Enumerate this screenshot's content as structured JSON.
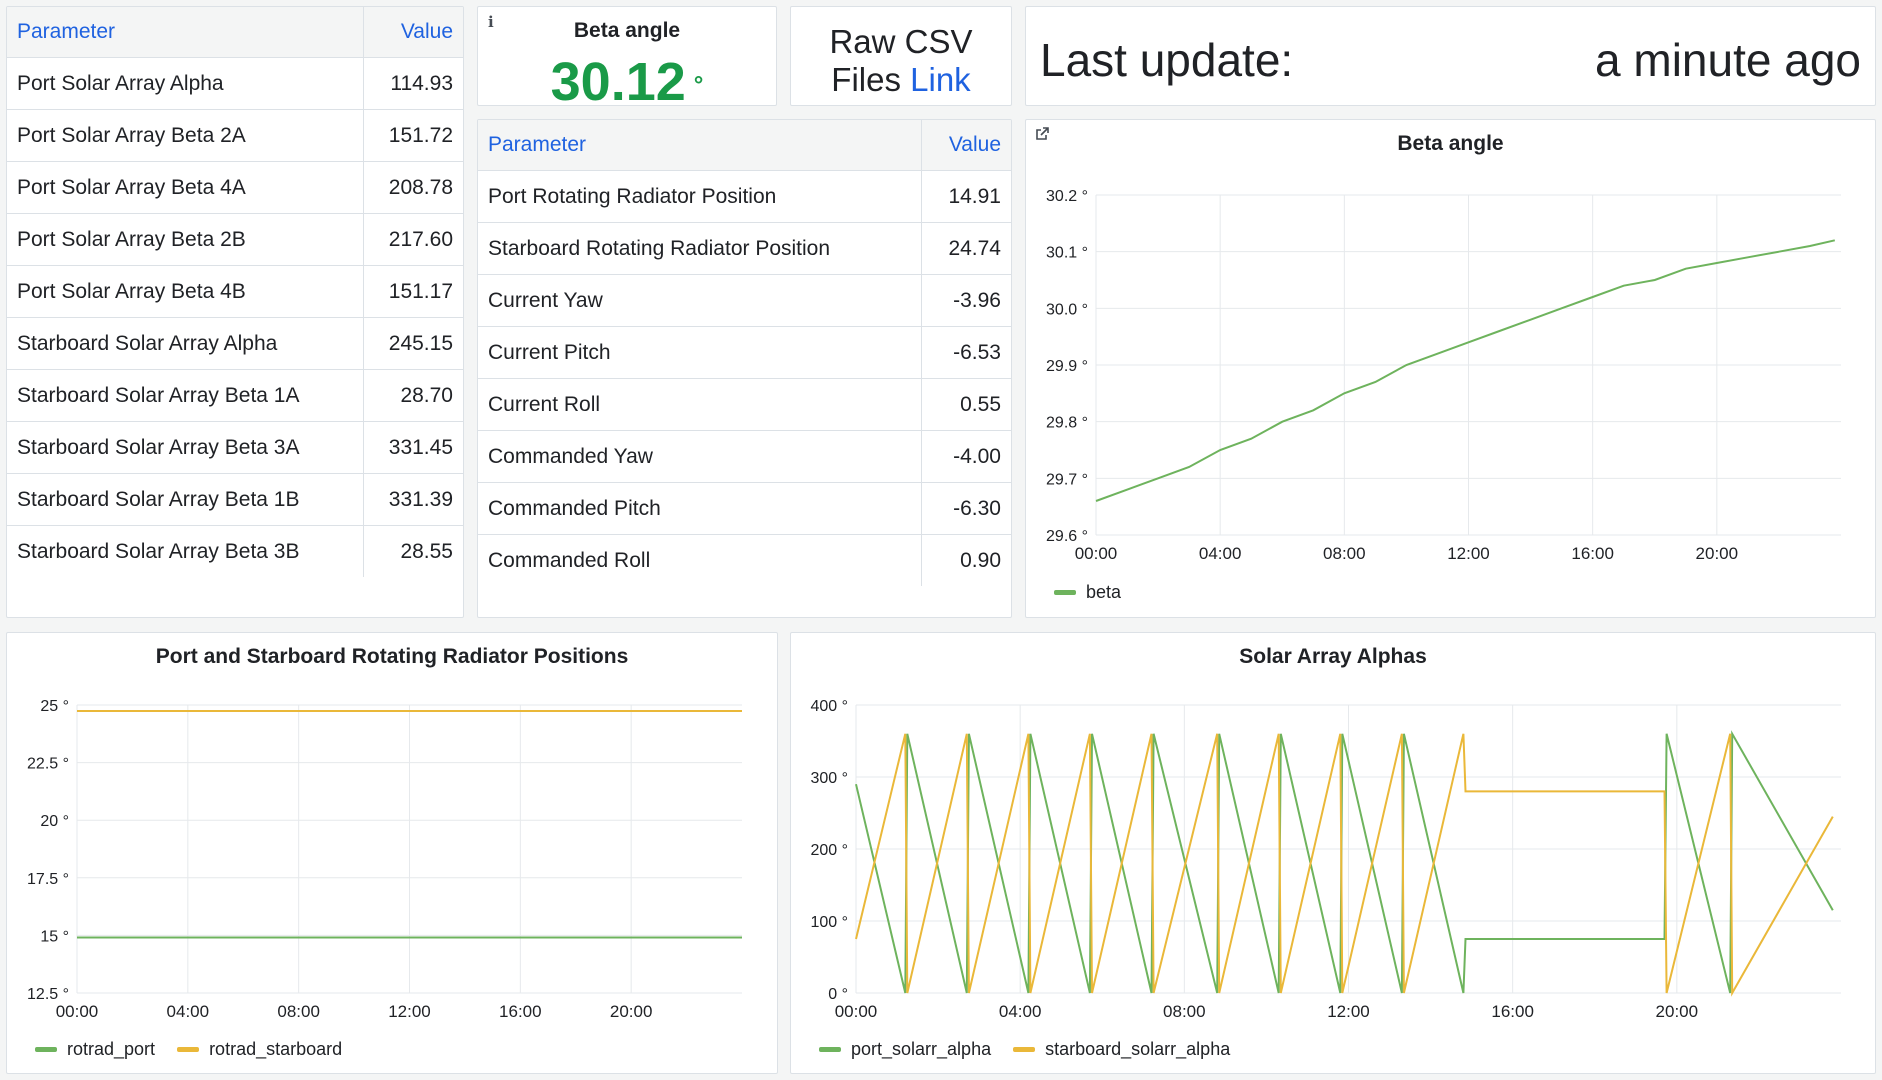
{
  "left_table": {
    "header": {
      "param": "Parameter",
      "value": "Value"
    },
    "rows": [
      {
        "param": "Port Solar Array Alpha",
        "value": "114.93"
      },
      {
        "param": "Port Solar Array Beta 2A",
        "value": "151.72"
      },
      {
        "param": "Port Solar Array Beta 4A",
        "value": "208.78"
      },
      {
        "param": "Port Solar Array Beta 2B",
        "value": "217.60"
      },
      {
        "param": "Port Solar Array Beta 4B",
        "value": "151.17"
      },
      {
        "param": "Starboard Solar Array Alpha",
        "value": "245.15"
      },
      {
        "param": "Starboard Solar Array Beta 1A",
        "value": "28.70"
      },
      {
        "param": "Starboard Solar Array Beta 3A",
        "value": "331.45"
      },
      {
        "param": "Starboard Solar Array Beta 1B",
        "value": "331.39"
      },
      {
        "param": "Starboard Solar Array Beta 3B",
        "value": "28.55"
      }
    ]
  },
  "beta_stat": {
    "title": "Beta angle",
    "value": "30.12",
    "unit": "°",
    "info_icon": "i",
    "color": "#1a9a48"
  },
  "raw_csv": {
    "line1": "Raw CSV",
    "line2_prefix": "Files ",
    "link_text": "Link"
  },
  "last_update": {
    "label": "Last update:",
    "value": "a minute ago"
  },
  "mid_table": {
    "header": {
      "param": "Parameter",
      "value": "Value"
    },
    "rows": [
      {
        "param": "Port Rotating Radiator Position",
        "value": "14.91"
      },
      {
        "param": "Starboard Rotating Radiator Position",
        "value": "24.74"
      },
      {
        "param": "Current Yaw",
        "value": "-3.96"
      },
      {
        "param": "Current Pitch",
        "value": "-6.53"
      },
      {
        "param": "Current Roll",
        "value": "0.55"
      },
      {
        "param": "Commanded Yaw",
        "value": "-4.00"
      },
      {
        "param": "Commanded Pitch",
        "value": "-6.30"
      },
      {
        "param": "Commanded Roll",
        "value": "0.90"
      }
    ]
  },
  "chart_data": [
    {
      "id": "beta",
      "type": "line",
      "title": "Beta angle",
      "link_icon": "external-link-icon",
      "yticks": [
        "30.2 °",
        "30.1 °",
        "30.0 °",
        "29.9 °",
        "29.8 °",
        "29.7 °",
        "29.6 °"
      ],
      "ytick_values": [
        30.2,
        30.1,
        30.0,
        29.9,
        29.8,
        29.7,
        29.6
      ],
      "xticks": [
        "00:00",
        "04:00",
        "08:00",
        "12:00",
        "16:00",
        "20:00"
      ],
      "xtick_hours": [
        0,
        4,
        8,
        12,
        16,
        20
      ],
      "ylim": [
        29.6,
        30.2
      ],
      "xlim_hours": [
        0,
        24
      ],
      "grid": true,
      "legend_position": "bottom-left",
      "series": [
        {
          "name": "beta",
          "color": "#6eb35d",
          "x": [
            0,
            1,
            2,
            3,
            4,
            5,
            6,
            7,
            8,
            9,
            10,
            11,
            12,
            13,
            14,
            15,
            16,
            17,
            18,
            19,
            20,
            21,
            22,
            23,
            23.8
          ],
          "y": [
            29.66,
            29.68,
            29.7,
            29.72,
            29.75,
            29.77,
            29.8,
            29.82,
            29.85,
            29.87,
            29.9,
            29.92,
            29.94,
            29.96,
            29.98,
            30.0,
            30.02,
            30.04,
            30.05,
            30.07,
            30.08,
            30.09,
            30.1,
            30.11,
            30.12
          ]
        }
      ]
    },
    {
      "id": "rotrad",
      "type": "line",
      "title": "Port and Starboard Rotating Radiator Positions",
      "yticks": [
        "25 °",
        "22.5 °",
        "20 °",
        "17.5 °",
        "15 °",
        "12.5 °"
      ],
      "ytick_values": [
        25,
        22.5,
        20,
        17.5,
        15,
        12.5
      ],
      "xticks": [
        "00:00",
        "04:00",
        "08:00",
        "12:00",
        "16:00",
        "20:00"
      ],
      "xtick_hours": [
        0,
        4,
        8,
        12,
        16,
        20
      ],
      "ylim": [
        12.5,
        25
      ],
      "xlim_hours": [
        0,
        24
      ],
      "grid": true,
      "legend_position": "bottom-left",
      "series": [
        {
          "name": "rotrad_port",
          "color": "#6eb35d",
          "x": [
            0,
            24
          ],
          "y": [
            14.91,
            14.91
          ]
        },
        {
          "name": "rotrad_starboard",
          "color": "#eab839",
          "x": [
            0,
            24
          ],
          "y": [
            24.74,
            24.74
          ]
        }
      ]
    },
    {
      "id": "alphas",
      "type": "line",
      "title": "Solar Array Alphas",
      "yticks": [
        "400 °",
        "300 °",
        "200 °",
        "100 °",
        "0 °"
      ],
      "ytick_values": [
        400,
        300,
        200,
        100,
        0
      ],
      "xticks": [
        "00:00",
        "04:00",
        "08:00",
        "12:00",
        "16:00",
        "20:00"
      ],
      "xtick_hours": [
        0,
        4,
        8,
        12,
        16,
        20
      ],
      "ylim": [
        0,
        400
      ],
      "xlim_hours": [
        0,
        24
      ],
      "grid": true,
      "legend_position": "bottom-left",
      "series": [
        {
          "name": "port_solarr_alpha",
          "color": "#6eb35d",
          "x": [
            0,
            1.2,
            1.25,
            2.7,
            2.75,
            4.2,
            4.25,
            5.7,
            5.75,
            7.2,
            7.25,
            8.8,
            8.85,
            10.3,
            10.35,
            11.8,
            11.85,
            13.3,
            13.35,
            14.8,
            14.85,
            16.7,
            19.7,
            19.75,
            21.3,
            21.35,
            23.8
          ],
          "y": [
            290,
            0,
            360,
            0,
            360,
            0,
            360,
            0,
            360,
            0,
            360,
            0,
            360,
            0,
            360,
            0,
            360,
            0,
            360,
            0,
            75,
            75,
            75,
            360,
            0,
            360,
            115
          ]
        }
      ]
    },
    {
      "id": "alphas_sb",
      "type": "line",
      "series": [
        {
          "name": "starboard_solarr_alpha",
          "color": "#eab839",
          "x": [
            0,
            1.2,
            1.25,
            2.7,
            2.75,
            4.2,
            4.25,
            5.7,
            5.75,
            7.2,
            7.25,
            8.8,
            8.85,
            10.3,
            10.35,
            11.8,
            11.85,
            13.3,
            13.35,
            14.8,
            14.85,
            16.7,
            19.7,
            19.75,
            21.3,
            21.35,
            23.8
          ],
          "y": [
            75,
            360,
            0,
            360,
            0,
            360,
            0,
            360,
            0,
            360,
            0,
            360,
            0,
            360,
            0,
            360,
            0,
            360,
            0,
            360,
            280,
            280,
            280,
            0,
            360,
            0,
            245
          ]
        }
      ]
    }
  ]
}
